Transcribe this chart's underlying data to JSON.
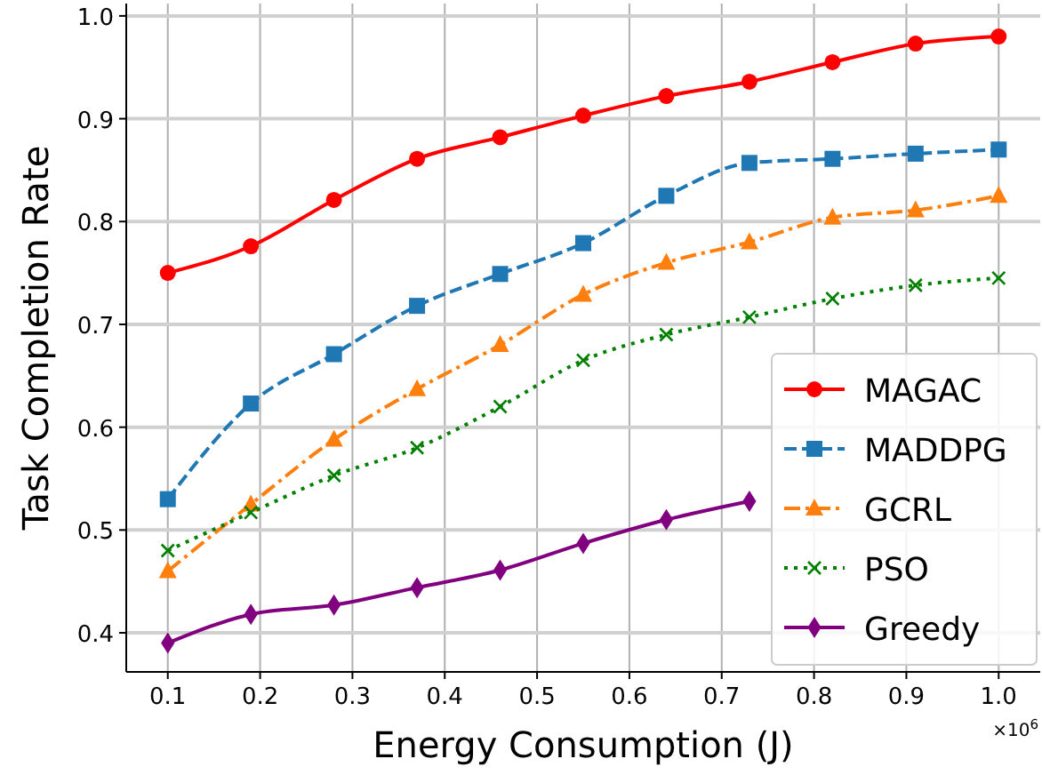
{
  "chart_data": {
    "type": "line",
    "xlabel": "Energy Consumption (J)",
    "ylabel": "Task Completion Rate",
    "x": [
      0.1,
      0.19,
      0.28,
      0.37,
      0.46,
      0.55,
      0.64,
      0.73,
      0.82,
      0.91,
      1.0
    ],
    "xlim": [
      0.055,
      1.045
    ],
    "xticks": [
      {
        "value": 0.1,
        "label": "0.1"
      },
      {
        "value": 0.2,
        "label": "0.2"
      },
      {
        "value": 0.3,
        "label": "0.3"
      },
      {
        "value": 0.4,
        "label": "0.4"
      },
      {
        "value": 0.5,
        "label": "0.5"
      },
      {
        "value": 0.6,
        "label": "0.6"
      },
      {
        "value": 0.7,
        "label": "0.7"
      },
      {
        "value": 0.8,
        "label": "0.8"
      },
      {
        "value": 0.9,
        "label": "0.9"
      },
      {
        "value": 1.0,
        "label": "1.0"
      }
    ],
    "ylim": [
      0.362,
      1.012
    ],
    "yticks": [
      {
        "value": 0.4,
        "label": "0.4"
      },
      {
        "value": 0.5,
        "label": "0.5"
      },
      {
        "value": 0.6,
        "label": "0.6"
      },
      {
        "value": 0.7,
        "label": "0.7"
      },
      {
        "value": 0.8,
        "label": "0.8"
      },
      {
        "value": 0.9,
        "label": "0.9"
      },
      {
        "value": 1.0,
        "label": "1.0"
      }
    ],
    "grid": true,
    "legend": "bottom right",
    "annotations": [
      "×10$^{6}$"
    ],
    "series": [
      {
        "name": "MAGAC",
        "color": "#ff0000",
        "marker": "circle",
        "line_style": "solid",
        "values": [
          0.75,
          0.776,
          0.821,
          0.861,
          0.882,
          0.903,
          0.922,
          0.936,
          0.955,
          0.973,
          0.98
        ]
      },
      {
        "name": "MADDPG",
        "color": "#1f77b4",
        "marker": "square",
        "line_style": "dashed",
        "values": [
          0.53,
          0.623,
          0.671,
          0.718,
          0.749,
          0.779,
          0.825,
          0.857,
          0.861,
          0.866,
          0.87
        ]
      },
      {
        "name": "GCRL",
        "color": "#ff7f0e",
        "marker": "triangle",
        "line_style": "dashdot",
        "values": [
          0.46,
          0.525,
          0.588,
          0.637,
          0.68,
          0.729,
          0.76,
          0.78,
          0.804,
          0.811,
          0.825
        ]
      },
      {
        "name": "PSO",
        "color": "#008000",
        "marker": "cross",
        "line_style": "dotted",
        "values": [
          0.48,
          0.517,
          0.553,
          0.58,
          0.62,
          0.665,
          0.69,
          0.707,
          0.725,
          0.738,
          0.745
        ]
      },
      {
        "name": "Greedy",
        "color": "#800080",
        "marker": "diamond",
        "line_style": "solid",
        "values": [
          0.39,
          0.418,
          0.427,
          0.444,
          0.461,
          0.487,
          0.51,
          0.528,
          null,
          null,
          null
        ]
      }
    ]
  }
}
